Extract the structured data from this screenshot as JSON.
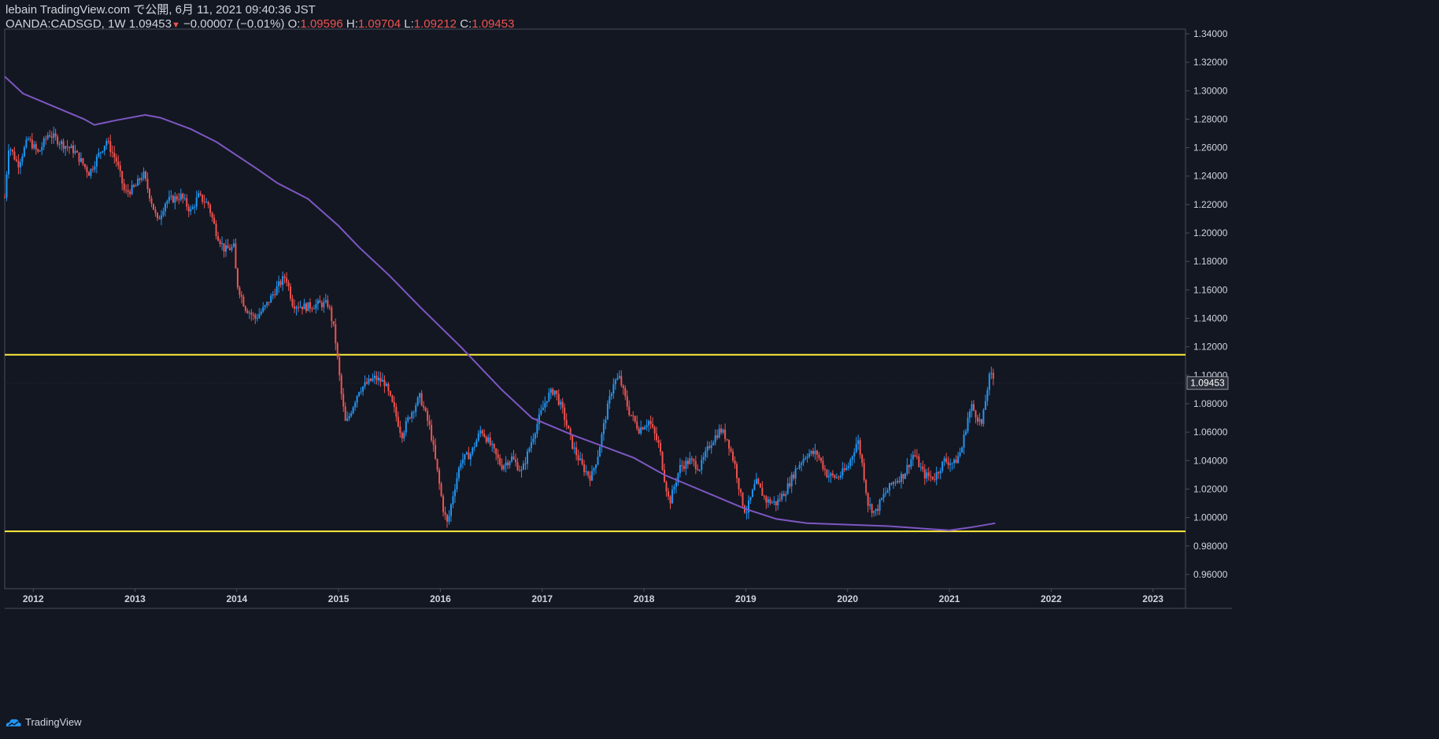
{
  "header": {
    "publisher": "lebain TradingView.com で公開, 6月 11, 2021 09:40:36 JST",
    "symbol": "OANDA:CADSGD, 1W",
    "last_price": "1.09453",
    "change_arrow": "▼",
    "change": "−0.00007 (−0.01%)",
    "open_label": "O:",
    "open": "1.09596",
    "high_label": "H:",
    "high": "1.09704",
    "low_label": "L:",
    "low": "1.09212",
    "close_label": "C:",
    "close": "1.09453"
  },
  "footer": {
    "brand": "TradingView"
  },
  "colors": {
    "background": "#131722",
    "up": "#2196f3",
    "down": "#ef5350",
    "moving_average": "#7e57c2",
    "horizontal_line": "#ffeb3b",
    "axis_text": "#d1d4dc",
    "border": "#4a4e59"
  },
  "chart_data": {
    "type": "candlestick",
    "interval": "1W",
    "x_ticks": [
      "2012",
      "2013",
      "2014",
      "2015",
      "2016",
      "2017",
      "2018",
      "2019",
      "2020",
      "2021",
      "2022",
      "2023"
    ],
    "x_range": [
      2011.72,
      2023.32
    ],
    "y_ticks": [
      "1.34000",
      "1.32000",
      "1.30000",
      "1.28000",
      "1.26000",
      "1.24000",
      "1.22000",
      "1.20000",
      "1.18000",
      "1.16000",
      "1.14000",
      "1.12000",
      "1.10000",
      "1.08000",
      "1.06000",
      "1.04000",
      "1.02000",
      "1.00000",
      "0.98000",
      "0.96000"
    ],
    "y_range": [
      0.95,
      1.3433
    ],
    "last_price_label": "1.09453",
    "last_price": 1.09453,
    "horizontal_lines": [
      1.1144,
      0.9903
    ],
    "price_path": [
      [
        2011.72,
        1.225
      ],
      [
        2011.76,
        1.262
      ],
      [
        2011.85,
        1.248
      ],
      [
        2011.95,
        1.266
      ],
      [
        2012.05,
        1.256
      ],
      [
        2012.15,
        1.27
      ],
      [
        2012.3,
        1.262
      ],
      [
        2012.4,
        1.258
      ],
      [
        2012.55,
        1.242
      ],
      [
        2012.65,
        1.256
      ],
      [
        2012.72,
        1.265
      ],
      [
        2012.82,
        1.25
      ],
      [
        2012.9,
        1.228
      ],
      [
        2013.0,
        1.232
      ],
      [
        2013.08,
        1.242
      ],
      [
        2013.13,
        1.23
      ],
      [
        2013.22,
        1.208
      ],
      [
        2013.3,
        1.222
      ],
      [
        2013.45,
        1.226
      ],
      [
        2013.55,
        1.215
      ],
      [
        2013.62,
        1.226
      ],
      [
        2013.72,
        1.22
      ],
      [
        2013.8,
        1.2
      ],
      [
        2013.88,
        1.188
      ],
      [
        2013.97,
        1.19
      ],
      [
        2014.0,
        1.165
      ],
      [
        2014.08,
        1.148
      ],
      [
        2014.18,
        1.14
      ],
      [
        2014.28,
        1.148
      ],
      [
        2014.38,
        1.16
      ],
      [
        2014.48,
        1.17
      ],
      [
        2014.55,
        1.15
      ],
      [
        2014.68,
        1.148
      ],
      [
        2014.8,
        1.15
      ],
      [
        2014.9,
        1.15
      ],
      [
        2014.96,
        1.13
      ],
      [
        2015.03,
        1.085
      ],
      [
        2015.07,
        1.065
      ],
      [
        2015.2,
        1.09
      ],
      [
        2015.35,
        1.098
      ],
      [
        2015.45,
        1.095
      ],
      [
        2015.55,
        1.075
      ],
      [
        2015.62,
        1.058
      ],
      [
        2015.7,
        1.072
      ],
      [
        2015.8,
        1.085
      ],
      [
        2015.9,
        1.062
      ],
      [
        2015.97,
        1.032
      ],
      [
        2016.03,
        1.005
      ],
      [
        2016.07,
        0.995
      ],
      [
        2016.12,
        1.015
      ],
      [
        2016.2,
        1.04
      ],
      [
        2016.3,
        1.045
      ],
      [
        2016.4,
        1.062
      ],
      [
        2016.5,
        1.05
      ],
      [
        2016.6,
        1.036
      ],
      [
        2016.7,
        1.042
      ],
      [
        2016.8,
        1.032
      ],
      [
        2016.9,
        1.055
      ],
      [
        2016.97,
        1.07
      ],
      [
        2017.05,
        1.085
      ],
      [
        2017.12,
        1.09
      ],
      [
        2017.2,
        1.075
      ],
      [
        2017.3,
        1.05
      ],
      [
        2017.4,
        1.035
      ],
      [
        2017.48,
        1.028
      ],
      [
        2017.55,
        1.045
      ],
      [
        2017.62,
        1.07
      ],
      [
        2017.7,
        1.095
      ],
      [
        2017.76,
        1.098
      ],
      [
        2017.85,
        1.075
      ],
      [
        2017.95,
        1.062
      ],
      [
        2018.05,
        1.068
      ],
      [
        2018.15,
        1.05
      ],
      [
        2018.2,
        1.028
      ],
      [
        2018.25,
        1.01
      ],
      [
        2018.35,
        1.035
      ],
      [
        2018.45,
        1.04
      ],
      [
        2018.55,
        1.035
      ],
      [
        2018.65,
        1.052
      ],
      [
        2018.75,
        1.062
      ],
      [
        2018.82,
        1.055
      ],
      [
        2018.9,
        1.035
      ],
      [
        2018.95,
        1.015
      ],
      [
        2019.0,
        1.003
      ],
      [
        2019.1,
        1.025
      ],
      [
        2019.2,
        1.012
      ],
      [
        2019.3,
        1.01
      ],
      [
        2019.4,
        1.02
      ],
      [
        2019.5,
        1.035
      ],
      [
        2019.6,
        1.045
      ],
      [
        2019.7,
        1.045
      ],
      [
        2019.8,
        1.03
      ],
      [
        2019.9,
        1.028
      ],
      [
        2020.0,
        1.035
      ],
      [
        2020.1,
        1.055
      ],
      [
        2020.15,
        1.035
      ],
      [
        2020.2,
        1.01
      ],
      [
        2020.27,
        1.003
      ],
      [
        2020.35,
        1.015
      ],
      [
        2020.45,
        1.025
      ],
      [
        2020.55,
        1.03
      ],
      [
        2020.65,
        1.045
      ],
      [
        2020.75,
        1.03
      ],
      [
        2020.85,
        1.028
      ],
      [
        2020.95,
        1.04
      ],
      [
        2021.05,
        1.038
      ],
      [
        2021.12,
        1.048
      ],
      [
        2021.18,
        1.07
      ],
      [
        2021.22,
        1.078
      ],
      [
        2021.28,
        1.07
      ],
      [
        2021.32,
        1.065
      ],
      [
        2021.36,
        1.085
      ],
      [
        2021.39,
        1.098
      ],
      [
        2021.42,
        1.1
      ],
      [
        2021.45,
        1.09453
      ]
    ],
    "moving_average_path": [
      [
        2011.72,
        1.31
      ],
      [
        2011.9,
        1.298
      ],
      [
        2012.2,
        1.289
      ],
      [
        2012.5,
        1.28
      ],
      [
        2012.6,
        1.276
      ],
      [
        2012.8,
        1.279
      ],
      [
        2013.1,
        1.283
      ],
      [
        2013.25,
        1.281
      ],
      [
        2013.55,
        1.273
      ],
      [
        2013.8,
        1.264
      ],
      [
        2014.2,
        1.245
      ],
      [
        2014.4,
        1.235
      ],
      [
        2014.7,
        1.224
      ],
      [
        2015.0,
        1.205
      ],
      [
        2015.2,
        1.19
      ],
      [
        2015.5,
        1.17
      ],
      [
        2015.8,
        1.148
      ],
      [
        2016.2,
        1.12
      ],
      [
        2016.6,
        1.09
      ],
      [
        2016.9,
        1.07
      ],
      [
        2017.3,
        1.058
      ],
      [
        2017.6,
        1.05
      ],
      [
        2017.9,
        1.042
      ],
      [
        2018.2,
        1.03
      ],
      [
        2018.6,
        1.018
      ],
      [
        2019.0,
        1.006
      ],
      [
        2019.3,
        0.999
      ],
      [
        2019.6,
        0.996
      ],
      [
        2020.0,
        0.995
      ],
      [
        2020.4,
        0.994
      ],
      [
        2020.8,
        0.992
      ],
      [
        2021.0,
        0.991
      ],
      [
        2021.2,
        0.993
      ],
      [
        2021.45,
        0.996
      ]
    ]
  }
}
